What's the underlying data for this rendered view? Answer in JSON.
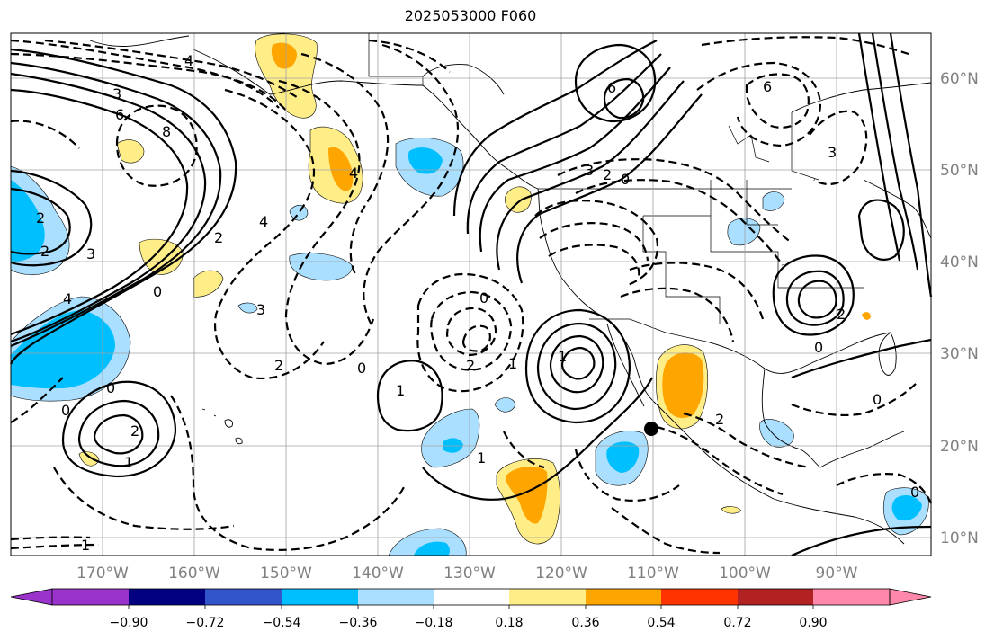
{
  "title": "2025053000 F060",
  "map": {
    "lat_ticks": [
      "60°N",
      "50°N",
      "40°N",
      "30°N",
      "20°N",
      "10°N"
    ],
    "lon_ticks": [
      "170°W",
      "160°W",
      "150°W",
      "140°W",
      "130°W",
      "120°W",
      "110°W",
      "100°W",
      "90°W"
    ],
    "contour_labels": [
      "4",
      "3",
      "6",
      "8",
      "2",
      "2",
      "3",
      "4",
      "4",
      "2",
      "0",
      "4",
      "3",
      "2",
      "0",
      "0",
      "1",
      "2",
      "1",
      "0",
      "1",
      "0",
      "1",
      "2",
      "1",
      "6",
      "3",
      "2",
      "0",
      "2",
      "6",
      "3",
      "0",
      "0",
      "2",
      "0",
      "1"
    ],
    "marker": "storm-center-dot"
  },
  "colorbar": {
    "tick_labels": [
      "−0.90",
      "−0.72",
      "−0.54",
      "−0.36",
      "−0.18",
      "0.18",
      "0.36",
      "0.54",
      "0.72",
      "0.90"
    ],
    "colors": [
      "#9933cc",
      "#000080",
      "#3355cc",
      "#00bfff",
      "#aadfff",
      "#ffffff",
      "#ffee88",
      "#ffa500",
      "#ff3300",
      "#b22222",
      "#ff88aa"
    ]
  }
}
